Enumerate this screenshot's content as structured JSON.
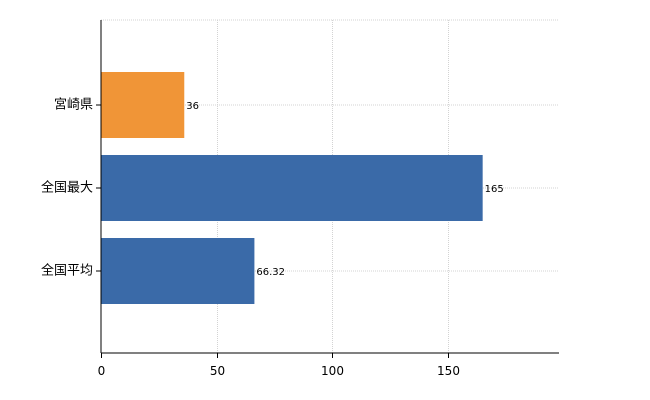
{
  "chart_data": {
    "type": "bar",
    "orientation": "horizontal",
    "title": "",
    "xlabel": "",
    "ylabel": "",
    "categories": [
      "宮崎県",
      "全国最大",
      "全国平均"
    ],
    "values": [
      36,
      165,
      66.32
    ],
    "data_labels": [
      "36",
      "165",
      "66.32"
    ],
    "colors": [
      "#F09537",
      "#3A6AA8",
      "#3A6AA8"
    ],
    "xlim": [
      0,
      198
    ],
    "xticks": [
      0,
      50,
      100,
      150
    ],
    "xtick_labels": [
      "0",
      "50",
      "100",
      "150"
    ],
    "grid": true,
    "legend": "none"
  }
}
